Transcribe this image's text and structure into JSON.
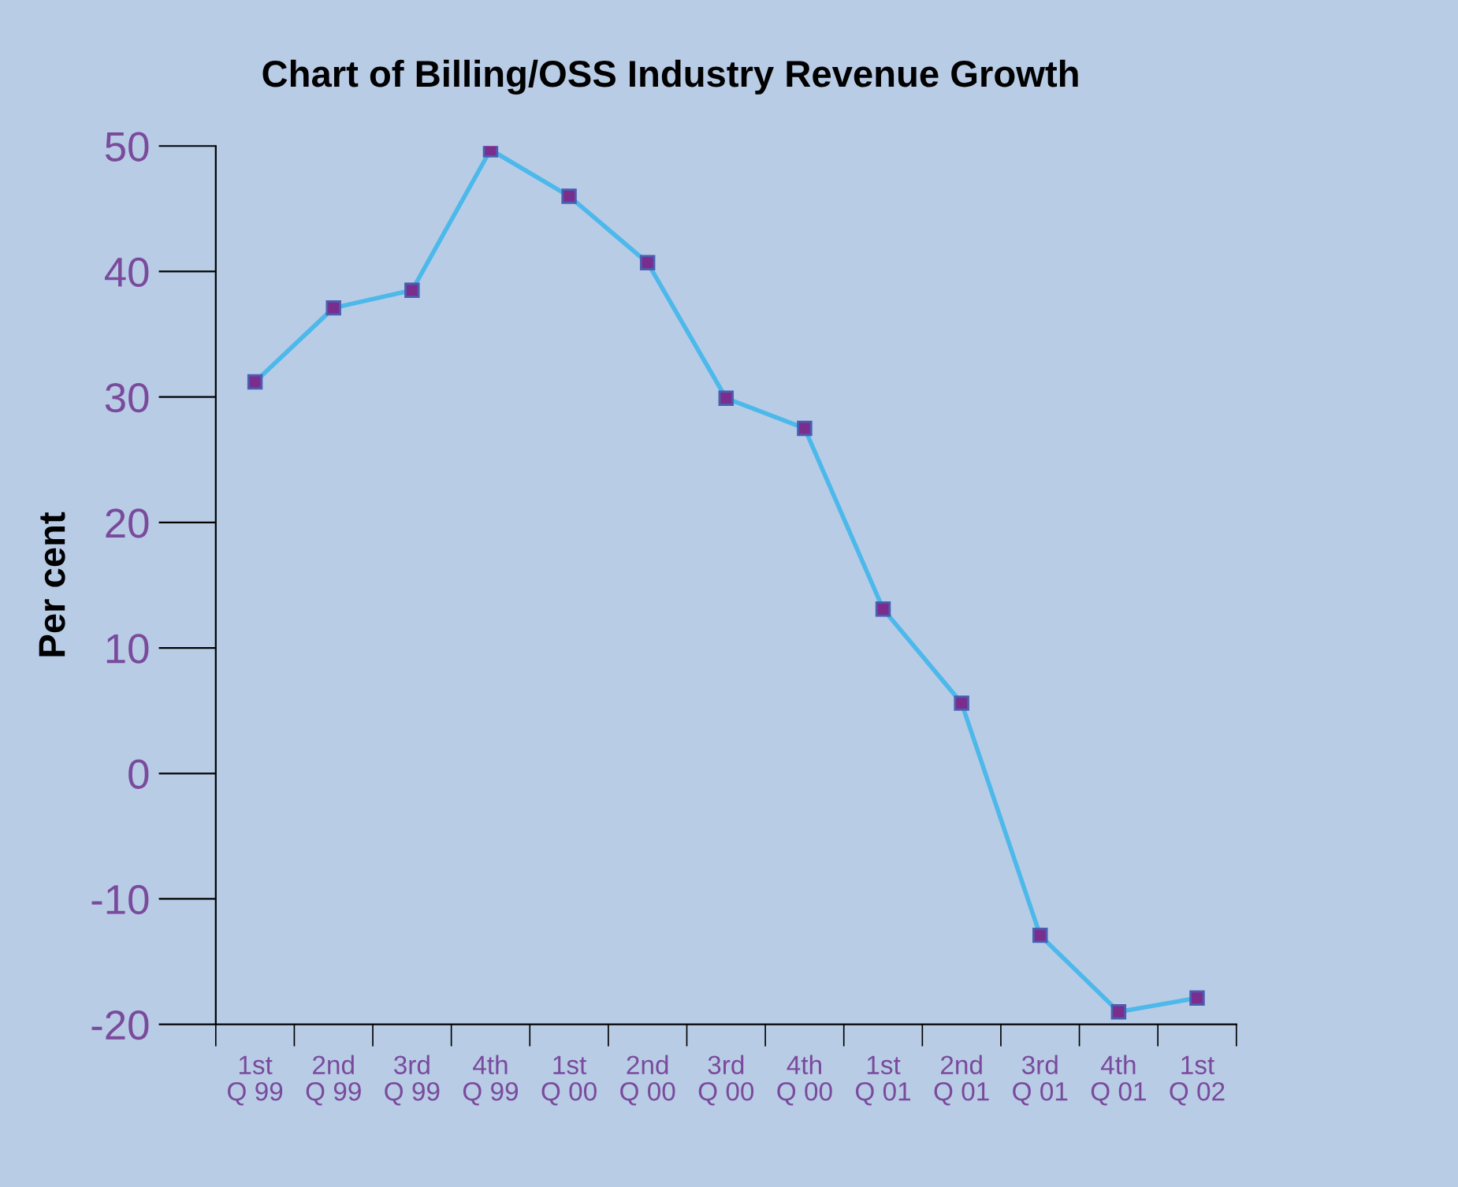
{
  "chart_data": {
    "type": "line",
    "title": "Chart of Billing/OSS Industry Revenue Growth",
    "ylabel": "Per cent",
    "categories": [
      "1st\nQ 99",
      "2nd\nQ 99",
      "3rd\nQ 99",
      "4th\nQ 99",
      "1st\nQ 00",
      "2nd\nQ 00",
      "3rd\nQ 00",
      "4th\nQ 00",
      "1st\nQ 01",
      "2nd\nQ 01",
      "3rd\nQ 01",
      "4th\nQ 01",
      "1st\nQ 02"
    ],
    "series": [
      {
        "color": "#4db8ea",
        "values": [
          31.2,
          37.1,
          38.5,
          49.7,
          46.0,
          40.7,
          29.9,
          27.5,
          13.1,
          5.6,
          -12.9,
          -19.0,
          -17.9
        ]
      }
    ],
    "ylim": [
      -20,
      50
    ],
    "yticks": [
      -20,
      -10,
      0,
      10,
      20,
      30,
      40,
      50
    ],
    "marker": "square",
    "line_style": "solid",
    "grid": false,
    "legend": false
  }
}
